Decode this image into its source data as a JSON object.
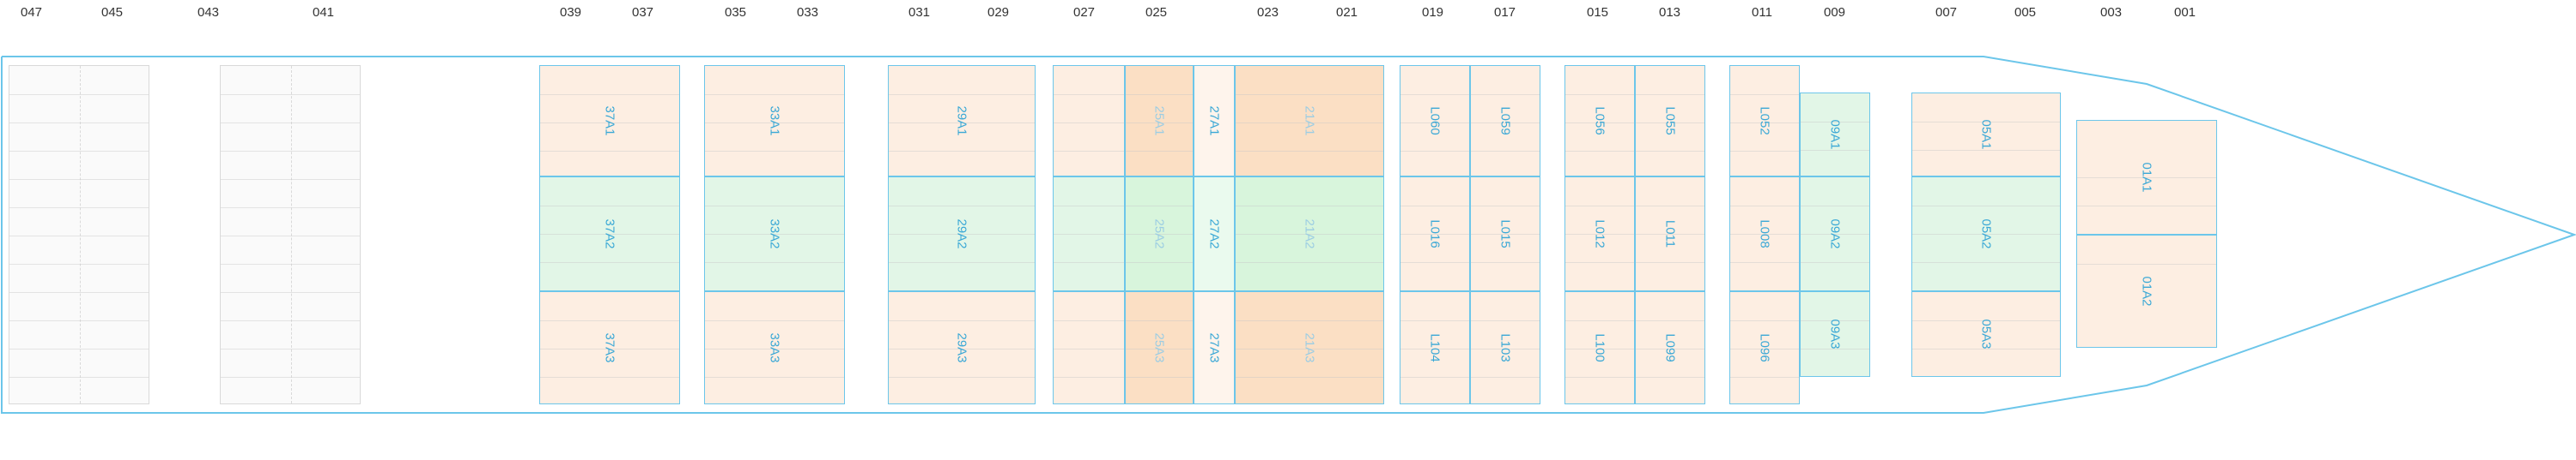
{
  "bay_labels": [
    "047",
    "045",
    "043",
    "041",
    "039",
    "037",
    "035",
    "033",
    "031",
    "029",
    "027",
    "025",
    "023",
    "021",
    "019",
    "017",
    "015",
    "013",
    "011",
    "009",
    "007",
    "005",
    "003",
    "001"
  ],
  "colors": {
    "hull": "#6cc6ea",
    "hold_peach": "#fdeee2",
    "hold_green": "#e2f6e7",
    "hold_dark_peach": "#fbdfc4",
    "label_blue": "#3aa8d6"
  },
  "holds": {
    "h37": [
      "37A1",
      "37A2",
      "37A3"
    ],
    "h33": [
      "33A1",
      "33A2",
      "33A3"
    ],
    "h29": [
      "29A1",
      "29A2",
      "29A3"
    ],
    "h25": [
      "25A1",
      "25A2",
      "25A3"
    ],
    "h27": [
      "27A1",
      "27A2",
      "27A3"
    ],
    "h21": [
      "21A1",
      "21A2",
      "21A3"
    ],
    "h19a": [
      "L060",
      "L016",
      "L104"
    ],
    "h19b": [
      "L059",
      "L015",
      "L103"
    ],
    "h15a": [
      "L056",
      "L012",
      "L100"
    ],
    "h15b": [
      "L055",
      "L011",
      "L099"
    ],
    "h11": [
      "L052",
      "L008",
      "L096"
    ],
    "h09": [
      "09A1",
      "09A2",
      "09A3"
    ],
    "h05": [
      "05A1",
      "05A2",
      "05A3"
    ],
    "h01": [
      "01A1",
      "01A2"
    ]
  }
}
